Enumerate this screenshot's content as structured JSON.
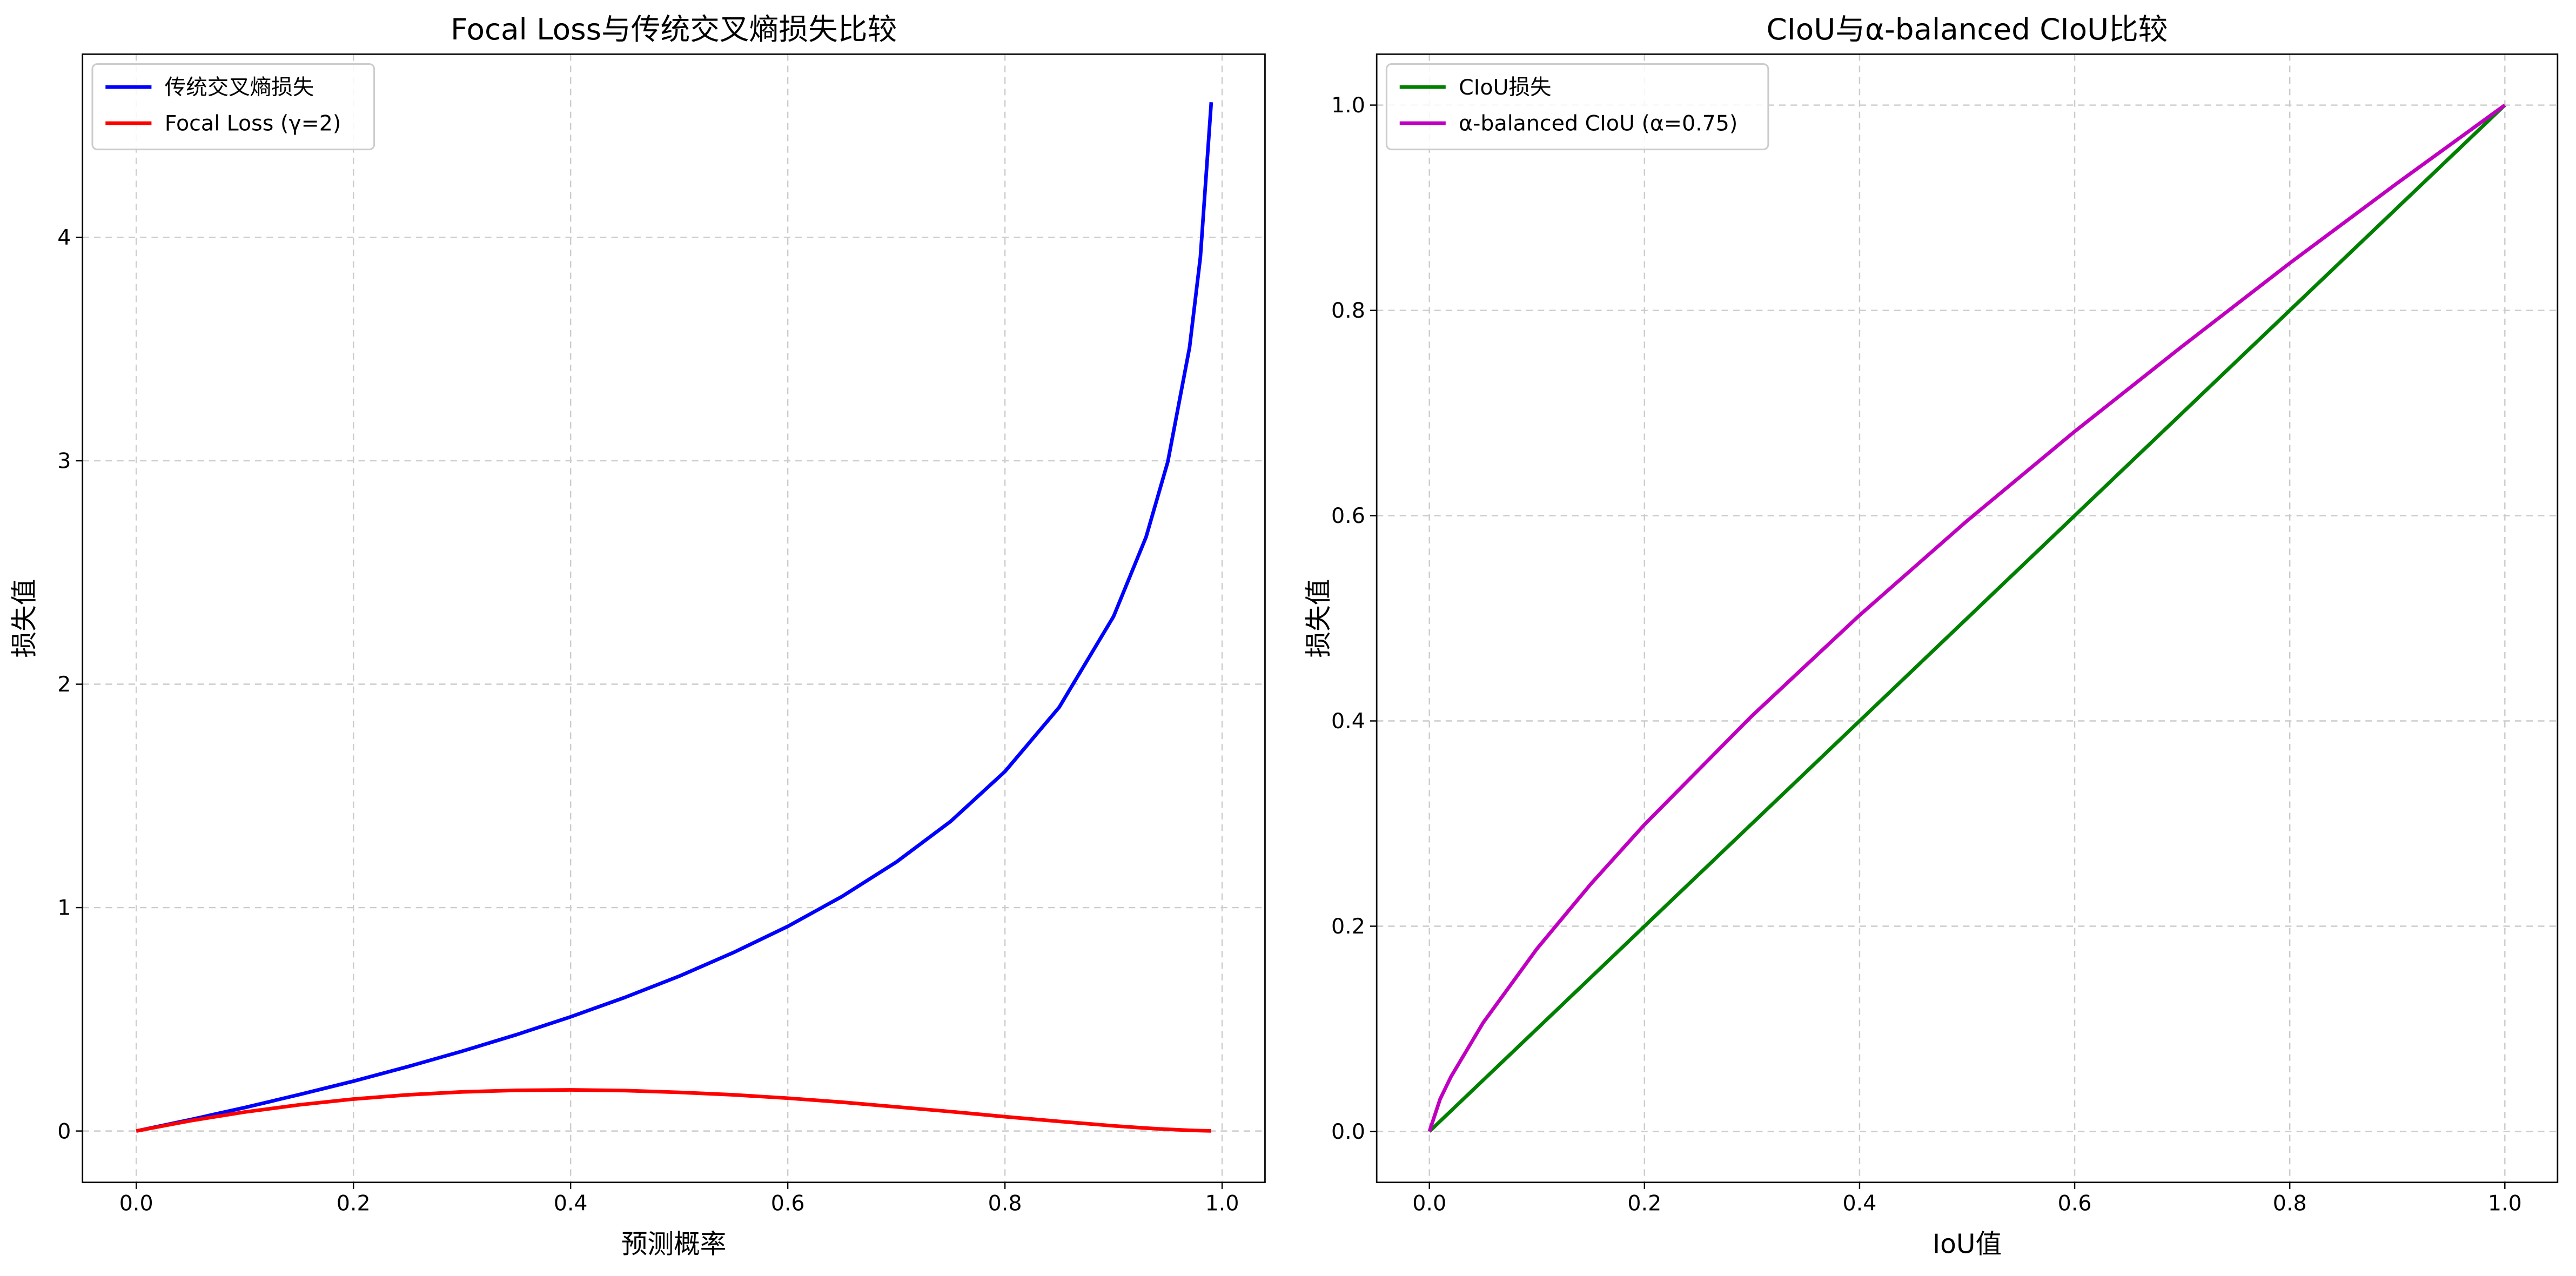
{
  "chart_data": [
    {
      "type": "line",
      "title": "Focal Loss与传统交叉熵损失比较",
      "xlabel": "预测概率",
      "ylabel": "损失值",
      "x": [
        0,
        0.05,
        0.1,
        0.15,
        0.2,
        0.25,
        0.3,
        0.35,
        0.4,
        0.45,
        0.5,
        0.55,
        0.6,
        0.65,
        0.7,
        0.75,
        0.8,
        0.85,
        0.9,
        0.93,
        0.95,
        0.97,
        0.98,
        0.99
      ],
      "series": [
        {
          "name": "传统交叉熵损失",
          "color": "#0000ff",
          "values": [
            0,
            0.051,
            0.105,
            0.163,
            0.223,
            0.288,
            0.357,
            0.431,
            0.511,
            0.598,
            0.693,
            0.799,
            0.916,
            1.05,
            1.204,
            1.386,
            1.609,
            1.897,
            2.303,
            2.659,
            2.996,
            3.507,
            3.912,
            4.605
          ]
        },
        {
          "name": "Focal Loss (γ=2)",
          "color": "#ff0000",
          "values": [
            0,
            0.046,
            0.085,
            0.117,
            0.143,
            0.162,
            0.175,
            0.182,
            0.184,
            0.181,
            0.173,
            0.162,
            0.147,
            0.129,
            0.108,
            0.087,
            0.064,
            0.043,
            0.023,
            0.013,
            0.0075,
            0.0032,
            0.0016,
            0.0005
          ]
        }
      ],
      "xlim": [
        -0.0495,
        1.0395
      ],
      "ylim": [
        -0.23,
        4.82
      ],
      "xticks": [
        {
          "value": 0,
          "label": "0.0"
        },
        0.2,
        0.4,
        0.6,
        0.8,
        {
          "value": 1,
          "label": "1.0"
        }
      ],
      "yticks": [
        0,
        1,
        2,
        3,
        4
      ],
      "grid": true,
      "legend": "upper-left"
    },
    {
      "type": "line",
      "title": "CIoU与α-balanced CIoU比较",
      "xlabel": "IoU值",
      "ylabel": "损失值",
      "x": [
        0,
        0.01,
        0.02,
        0.05,
        0.1,
        0.15,
        0.2,
        0.3,
        0.4,
        0.5,
        0.6,
        0.7,
        0.8,
        0.9,
        1
      ],
      "series": [
        {
          "name": "CIoU损失",
          "color": "#008000",
          "values": [
            0,
            0.01,
            0.02,
            0.05,
            0.1,
            0.15,
            0.2,
            0.3,
            0.4,
            0.5,
            0.6,
            0.7,
            0.8,
            0.9,
            1
          ]
        },
        {
          "name": "α-balanced CIoU (α=0.75)",
          "color": "#c000c0",
          "values": [
            0,
            0.0316,
            0.0532,
            0.106,
            0.178,
            0.241,
            0.299,
            0.405,
            0.503,
            0.595,
            0.682,
            0.765,
            0.846,
            0.924,
            1
          ]
        }
      ],
      "xlim": [
        -0.049,
        1.049
      ],
      "ylim": [
        -0.0496,
        1.0496
      ],
      "xticks": [
        {
          "value": 0,
          "label": "0.0"
        },
        0.2,
        0.4,
        0.6,
        0.8,
        {
          "value": 1,
          "label": "1.0"
        }
      ],
      "yticks": [
        {
          "value": 0,
          "label": "0.0"
        },
        0.2,
        0.4,
        0.6,
        0.8,
        {
          "value": 1,
          "label": "1.0"
        }
      ],
      "grid": true,
      "legend": "upper-left"
    }
  ]
}
